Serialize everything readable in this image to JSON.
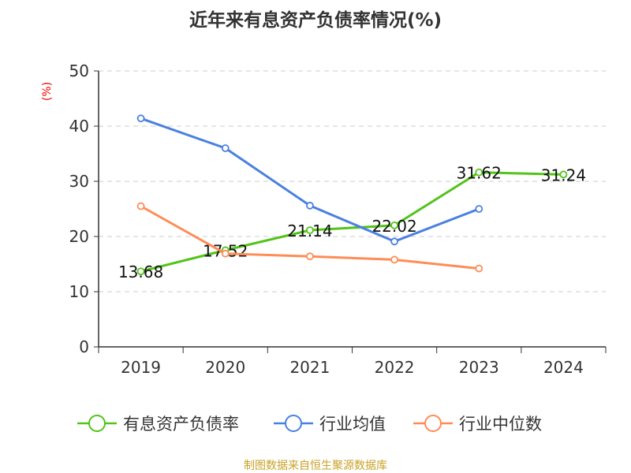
{
  "chart_data": {
    "type": "line",
    "title": "近年来有息资产负债率情况(%)",
    "ylabel": "(%)",
    "categories": [
      "2019",
      "2020",
      "2021",
      "2022",
      "2023",
      "2024"
    ],
    "ylim": [
      0,
      50
    ],
    "yticks": [
      0,
      10,
      20,
      30,
      40,
      50
    ],
    "grid": true,
    "legend_position": "bottom",
    "series": [
      {
        "name": "有息资产负债率",
        "color": "#52c41a",
        "values": [
          13.68,
          17.52,
          21.14,
          22.02,
          31.62,
          31.24
        ],
        "labels": [
          "13.68",
          "17.52",
          "21.14",
          "22.02",
          "31.62",
          "31.24"
        ]
      },
      {
        "name": "行业均值",
        "color": "#4a80e0",
        "values": [
          41.4,
          36.0,
          25.6,
          19.1,
          25.0,
          null
        ]
      },
      {
        "name": "行业中位数",
        "color": "#ff8c55",
        "values": [
          25.5,
          16.9,
          16.4,
          15.8,
          14.2,
          null
        ]
      }
    ]
  },
  "source": "制图数据来自恒生聚源数据库"
}
